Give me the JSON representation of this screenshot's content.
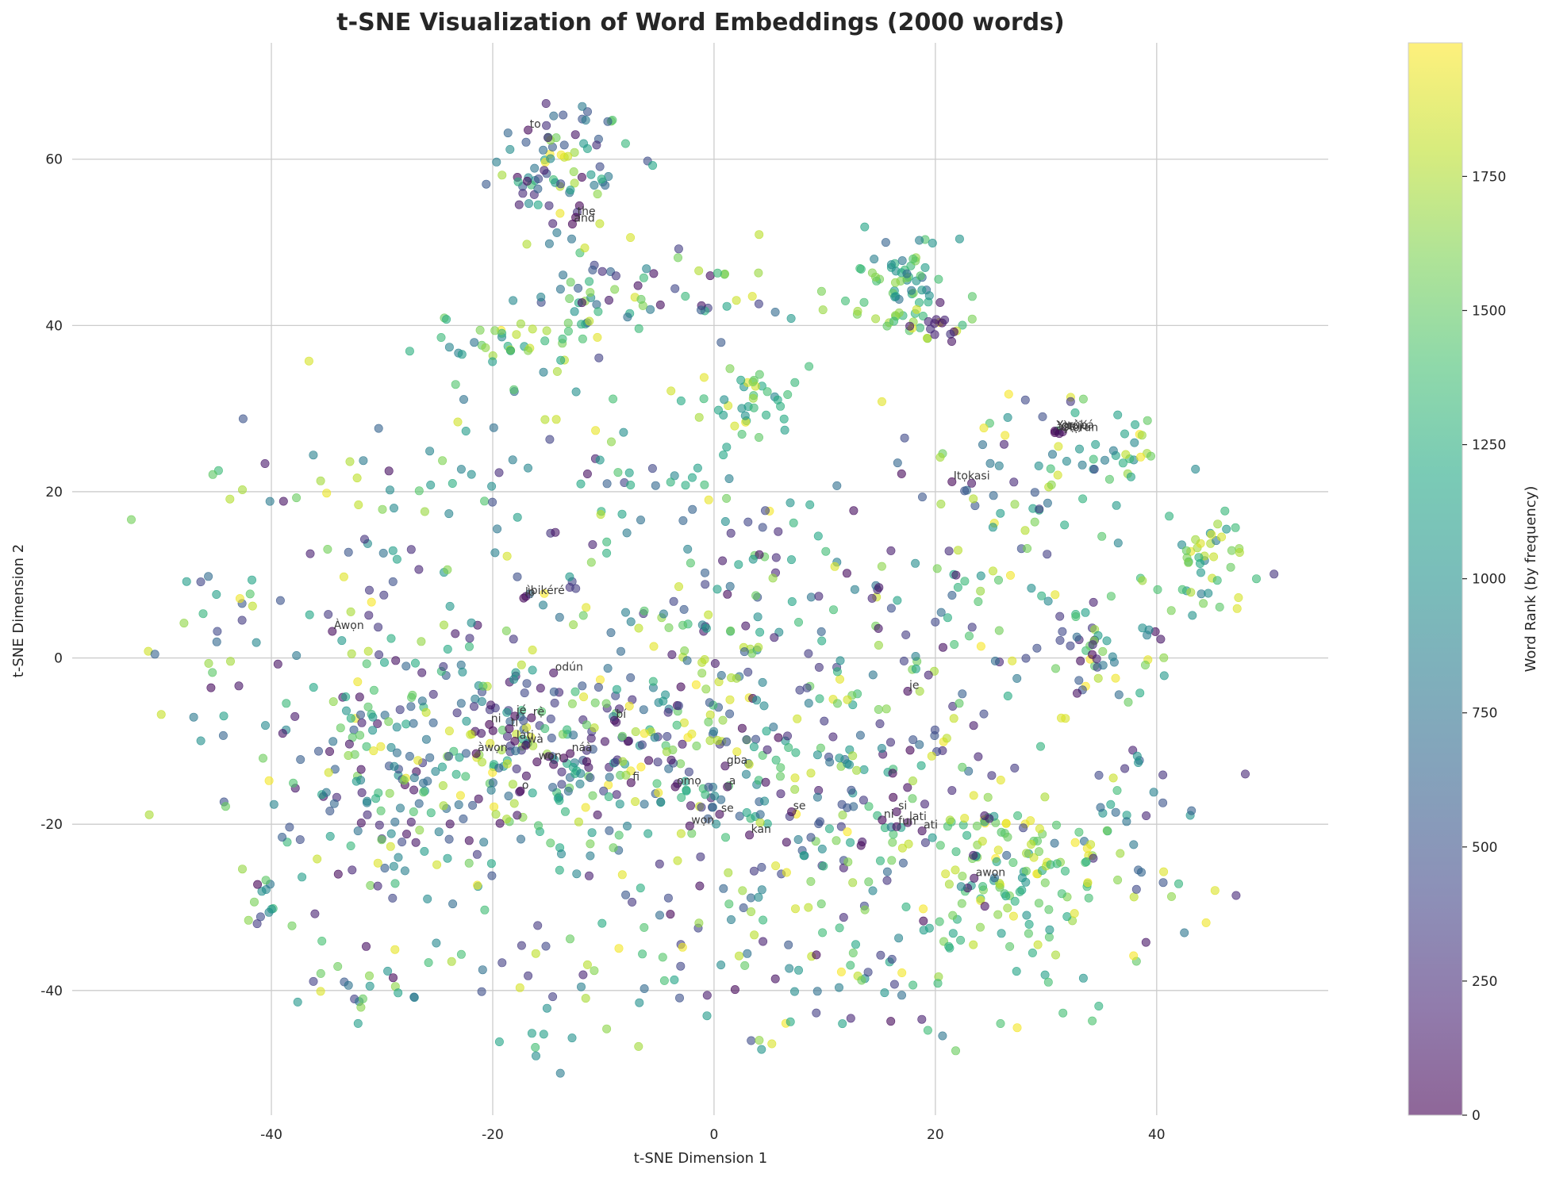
{
  "chart_data": {
    "type": "scatter",
    "title": "t-SNE Visualization of Word Embeddings (2000 words)",
    "xlabel": "t-SNE Dimension 1",
    "ylabel": "t-SNE Dimension 2",
    "xlim": [
      -58,
      55.5
    ],
    "ylim": [
      -55,
      74
    ],
    "xticks": [
      -40,
      -20,
      0,
      20,
      40
    ],
    "yticks": [
      -40,
      -20,
      0,
      20,
      40,
      60
    ],
    "grid": true,
    "colormap": "viridis",
    "point_alpha": 0.6,
    "colorbar": {
      "label": "Word Rank (by frequency)",
      "range": [
        0,
        1999
      ],
      "ticks": [
        0,
        250,
        500,
        750,
        1000,
        1250,
        1500,
        1750
      ]
    },
    "labeled_points": [
      {
        "word": "to",
        "x": -16.8,
        "y": 63.5,
        "rank": 30
      },
      {
        "word": "the",
        "x": -12.5,
        "y": 53,
        "rank": 5
      },
      {
        "word": "and",
        "x": -12.8,
        "y": 52.2,
        "rank": 8
      },
      {
        "word": "Yorùbá",
        "x": 30.8,
        "y": 27.3,
        "rank": 10
      },
      {
        "word": "àṣẹ",
        "x": 30.8,
        "y": 27.1,
        "rank": 25
      },
      {
        "word": "Ọlọ́run",
        "x": 31.2,
        "y": 27.0,
        "rank": 40
      },
      {
        "word": "ìtọ́jú",
        "x": 31.5,
        "y": 27.2,
        "rank": 55
      },
      {
        "word": "Itọkasi",
        "x": 21.5,
        "y": 21.2,
        "rank": 20
      },
      {
        "word": "lọ",
        "x": -17.2,
        "y": 7.2,
        "rank": 35
      },
      {
        "word": "ìbikéré",
        "x": -17,
        "y": 7.4,
        "rank": 60
      },
      {
        "word": "Àwọn",
        "x": -34.5,
        "y": 3.2,
        "rank": 50
      },
      {
        "word": "odún",
        "x": -14.5,
        "y": -1.8,
        "rank": 70
      },
      {
        "word": "je",
        "x": 17.5,
        "y": -4,
        "rank": 45
      },
      {
        "word": "jẹ́",
        "x": -18,
        "y": -7,
        "rank": 15
      },
      {
        "word": "rẹ̀",
        "x": -16.5,
        "y": -7.2,
        "rank": 22
      },
      {
        "word": "ni",
        "x": -20.3,
        "y": -8,
        "rank": 3
      },
      {
        "word": "bí",
        "x": -9,
        "y": -7.5,
        "rank": 65
      },
      {
        "word": "ti",
        "x": -18.5,
        "y": -8.5,
        "rank": 12
      },
      {
        "word": "láti",
        "x": -18,
        "y": -10,
        "rank": 18
      },
      {
        "word": "wà",
        "x": -17,
        "y": -10.5,
        "rank": 28
      },
      {
        "word": "àwọn",
        "x": -21.5,
        "y": -11.5,
        "rank": 4
      },
      {
        "word": "náà",
        "x": -13,
        "y": -11.5,
        "rank": 14
      },
      {
        "word": "wọn",
        "x": -16,
        "y": -12.5,
        "rank": 11
      },
      {
        "word": "gba",
        "x": 1,
        "y": -13,
        "rank": 80
      },
      {
        "word": "fi",
        "x": -7.5,
        "y": -15,
        "rank": 24
      },
      {
        "word": "ọmọ",
        "x": -3.5,
        "y": -15.5,
        "rank": 33
      },
      {
        "word": "a",
        "x": 1.2,
        "y": -15.5,
        "rank": 38
      },
      {
        "word": "ṣe",
        "x": 7,
        "y": -18.5,
        "rank": 26
      },
      {
        "word": "se",
        "x": 0.5,
        "y": -18.8,
        "rank": 44
      },
      {
        "word": "si",
        "x": 16.5,
        "y": -18.5,
        "rank": 48
      },
      {
        "word": "wọn",
        "x": -2.2,
        "y": -20.2,
        "rank": 52
      },
      {
        "word": "lati",
        "x": 17.5,
        "y": -19.8,
        "rank": 62
      },
      {
        "word": "fun",
        "x": 16.5,
        "y": -20.3,
        "rank": 66
      },
      {
        "word": "ati",
        "x": 18.8,
        "y": -20.8,
        "rank": 68
      },
      {
        "word": "kan",
        "x": 3.2,
        "y": -21.3,
        "rank": 42
      },
      {
        "word": "awọn",
        "x": 23.5,
        "y": -26.5,
        "rank": 90
      },
      {
        "word": "o",
        "x": -17.5,
        "y": -16,
        "rank": 6
      },
      {
        "word": "ni",
        "x": 15.2,
        "y": -19.5,
        "rank": 16
      }
    ],
    "clusters": [
      {
        "cx": -14,
        "cy": 59,
        "sx": 3.2,
        "sy": 3.8,
        "n": 85,
        "rmin": 0,
        "rmax": 1999
      },
      {
        "cx": 17,
        "cy": 46,
        "sx": 2.2,
        "sy": 2.3,
        "n": 50,
        "rmin": 600,
        "rmax": 1700
      },
      {
        "cx": 17.5,
        "cy": 40.5,
        "sx": 2.2,
        "sy": 1.2,
        "n": 25,
        "rmin": 1300,
        "rmax": 1999
      },
      {
        "cx": 20.5,
        "cy": 40.5,
        "sx": 1.2,
        "sy": 1.0,
        "n": 12,
        "rmin": 0,
        "rmax": 300
      },
      {
        "cx": 0,
        "cy": 44,
        "sx": 4,
        "sy": 2.5,
        "n": 25,
        "rmin": 0,
        "rmax": 1999
      },
      {
        "cx": 2,
        "cy": 31,
        "sx": 3.0,
        "sy": 2.5,
        "n": 40,
        "rmin": 900,
        "rmax": 1999
      },
      {
        "cx": -20,
        "cy": 37,
        "sx": 3.5,
        "sy": 3.5,
        "n": 40,
        "rmin": 700,
        "rmax": 1999
      },
      {
        "cx": -11,
        "cy": 43,
        "sx": 3,
        "sy": 3,
        "n": 40,
        "rmin": 0,
        "rmax": 1999
      },
      {
        "cx": 34,
        "cy": 25,
        "sx": 4,
        "sy": 3,
        "n": 40,
        "rmin": 800,
        "rmax": 1999
      },
      {
        "cx": 44.5,
        "cy": 11,
        "sx": 2.8,
        "sy": 2.8,
        "n": 45,
        "rmin": 800,
        "rmax": 1999
      },
      {
        "cx": 34,
        "cy": 2,
        "sx": 4,
        "sy": 4,
        "n": 50,
        "rmin": 0,
        "rmax": 1999
      },
      {
        "cx": 25,
        "cy": 20,
        "sx": 4,
        "sy": 6,
        "n": 35,
        "rmin": 0,
        "rmax": 1999
      },
      {
        "cx": 27.5,
        "cy": -27,
        "sx": 5,
        "sy": 6,
        "n": 130,
        "rmin": 1000,
        "rmax": 1999
      },
      {
        "cx": -16,
        "cy": -12,
        "sx": 9,
        "sy": 7,
        "n": 250,
        "rmin": 0,
        "rmax": 1999
      },
      {
        "cx": -30,
        "cy": -15,
        "sx": 6,
        "sy": 9,
        "n": 130,
        "rmin": 0,
        "rmax": 1999
      },
      {
        "cx": 12,
        "cy": -18,
        "sx": 8,
        "sy": 8,
        "n": 170,
        "rmin": 0,
        "rmax": 1999
      },
      {
        "cx": 0,
        "cy": -8,
        "sx": 10,
        "sy": 12,
        "n": 170,
        "rmin": 0,
        "rmax": 1999
      },
      {
        "cx": -5,
        "cy": 10,
        "sx": 15,
        "sy": 12,
        "n": 170,
        "rmin": 0,
        "rmax": 1999
      },
      {
        "cx": -40,
        "cy": -30,
        "sx": 2.5,
        "sy": 2.5,
        "n": 15,
        "rmin": 0,
        "rmax": 1999
      },
      {
        "cx": -45,
        "cy": 5,
        "sx": 4,
        "sy": 10,
        "n": 35,
        "rmin": 0,
        "rmax": 1999
      },
      {
        "cx": -32,
        "cy": -40,
        "sx": 2,
        "sy": 1.5,
        "n": 18,
        "rmin": 0,
        "rmax": 1999
      },
      {
        "cx": -6,
        "cy": -36,
        "sx": 10,
        "sy": 5,
        "n": 60,
        "rmin": 0,
        "rmax": 1999
      },
      {
        "cx": 20,
        "cy": 2,
        "sx": 8,
        "sy": 10,
        "n": 60,
        "rmin": 0,
        "rmax": 1999
      },
      {
        "cx": 38,
        "cy": -22,
        "sx": 4,
        "sy": 8,
        "n": 40,
        "rmin": 0,
        "rmax": 1999
      },
      {
        "cx": -30,
        "cy": 20,
        "sx": 6,
        "sy": 5,
        "n": 30,
        "rmin": 0,
        "rmax": 1999
      },
      {
        "cx": 14,
        "cy": -40,
        "sx": 8,
        "sy": 4,
        "n": 30,
        "rmin": 0,
        "rmax": 1999
      },
      {
        "cx": -16,
        "cy": -46,
        "sx": 1.5,
        "sy": 1.5,
        "n": 6,
        "rmin": 800,
        "rmax": 1400
      }
    ]
  }
}
